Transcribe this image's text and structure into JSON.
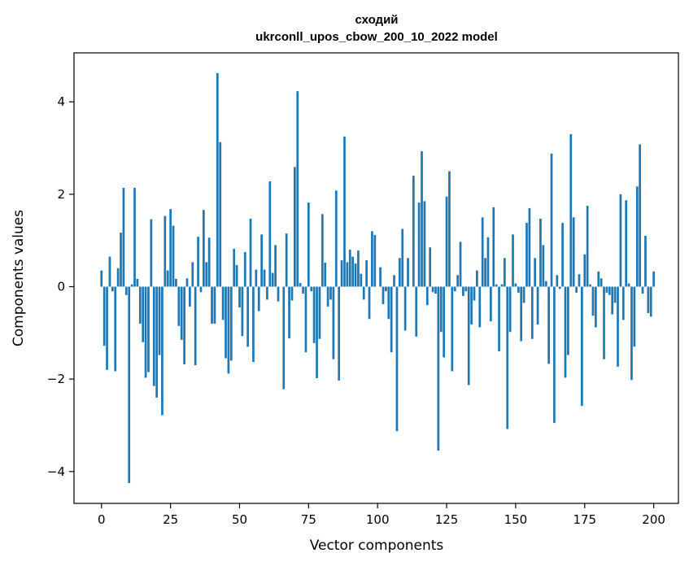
{
  "chart_data": {
    "type": "bar",
    "title": "сходий",
    "subtitle": "ukrconll_upos_cbow_200_10_2022 model",
    "xlabel": "Vector components",
    "ylabel": "Components values",
    "xlim": [
      -9.95,
      208.95
    ],
    "ylim": [
      -4.69,
      5.06
    ],
    "xticks": [
      0,
      25,
      50,
      75,
      100,
      125,
      150,
      175,
      200
    ],
    "yticks": [
      -4,
      -2,
      0,
      2,
      4
    ],
    "ytick_labels": [
      "−4",
      "−2",
      "0",
      "2",
      "4"
    ],
    "grid": false,
    "color": "#1f77b4",
    "values": [
      0.35,
      -1.28,
      -1.8,
      0.65,
      -0.1,
      -1.83,
      0.4,
      1.17,
      2.14,
      -0.18,
      -4.25,
      0.05,
      2.14,
      0.17,
      -0.8,
      -1.2,
      -1.97,
      -1.85,
      1.46,
      -2.15,
      -2.4,
      -1.48,
      -2.78,
      1.53,
      0.35,
      1.68,
      1.32,
      0.17,
      -0.85,
      -1.15,
      -1.68,
      0.18,
      -0.43,
      0.53,
      -1.7,
      1.08,
      -0.12,
      1.66,
      0.53,
      1.06,
      -0.8,
      -0.8,
      4.62,
      3.13,
      -0.72,
      -1.55,
      -1.88,
      -1.6,
      0.82,
      0.47,
      -0.45,
      -1.07,
      0.75,
      -1.3,
      1.47,
      -1.63,
      0.37,
      -0.53,
      1.13,
      0.37,
      -0.28,
      2.28,
      0.3,
      0.9,
      -0.32,
      0.0,
      -2.22,
      1.15,
      -1.12,
      -0.3,
      2.59,
      4.23,
      0.08,
      -0.15,
      -1.42,
      1.82,
      -0.1,
      -1.22,
      -1.98,
      -1.13,
      1.57,
      0.52,
      -0.43,
      -0.28,
      -1.57,
      2.08,
      -2.03,
      0.57,
      3.25,
      0.53,
      0.8,
      0.65,
      0.5,
      0.78,
      0.28,
      -0.28,
      0.57,
      -0.7,
      1.2,
      1.12,
      0.0,
      0.42,
      -0.38,
      -0.1,
      -0.7,
      -1.42,
      0.25,
      -3.13,
      0.62,
      1.25,
      -0.95,
      0.62,
      0.0,
      2.4,
      -1.08,
      1.82,
      2.93,
      1.85,
      -0.4,
      0.85,
      -0.12,
      -0.15,
      -3.55,
      -0.98,
      -1.53,
      1.95,
      2.5,
      -1.83,
      -0.1,
      0.25,
      0.97,
      -0.2,
      -0.1,
      -2.13,
      -0.82,
      -0.3,
      0.35,
      -0.88,
      1.5,
      0.62,
      1.07,
      -0.75,
      1.72,
      0.05,
      -1.4,
      0.05,
      0.62,
      -3.08,
      -0.98,
      1.13,
      0.07,
      -0.13,
      -1.18,
      -0.35,
      1.38,
      1.7,
      -1.13,
      0.62,
      -0.82,
      1.47,
      0.9,
      0.12,
      -1.67,
      2.88,
      -2.95,
      0.25,
      -0.05,
      1.38,
      -1.97,
      -1.48,
      3.3,
      1.5,
      -0.13,
      0.27,
      -2.58,
      0.7,
      1.75,
      0.05,
      -0.63,
      -0.88,
      0.33,
      0.18,
      -1.57,
      -0.13,
      -0.18,
      -0.6,
      -0.35,
      -1.73,
      2.0,
      -0.72,
      1.87,
      0.07,
      -2.02,
      -1.3,
      2.17,
      3.08,
      -0.15,
      1.1,
      -0.57,
      -0.65,
      0.33
    ]
  }
}
